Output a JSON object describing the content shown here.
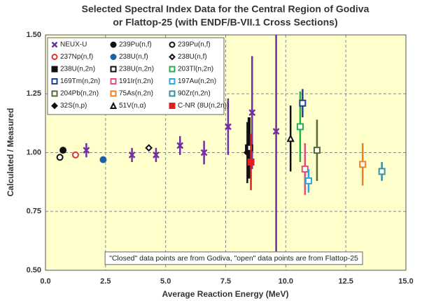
{
  "chart_data": {
    "type": "scatter",
    "title": [
      "Selected Spectral Index Data for the Central Region of Godiva",
      "or Flattop-25 (with ENDF/B-VII.1 Cross Sections)"
    ],
    "x_label": "Average Reaction Energy (MeV)",
    "y_label": "Calculated / Measured",
    "annotation": "\"Closed\" data points are from Godiva, \"open\" data points are from Flattop-25",
    "xlim": [
      0,
      15
    ],
    "ylim": [
      0.5,
      1.5
    ],
    "xticks": [
      {
        "value": 0,
        "label": "0.0"
      },
      {
        "value": 2.5,
        "label": "2.5"
      },
      {
        "value": 5,
        "label": "5.0"
      },
      {
        "value": 7.5,
        "label": "7.5"
      },
      {
        "value": 10,
        "label": "10.0"
      },
      {
        "value": 12.5,
        "label": "12.5"
      },
      {
        "value": 15,
        "label": "15.0"
      }
    ],
    "yticks": [
      {
        "value": 0.5,
        "label": "0.50"
      },
      {
        "value": 0.75,
        "label": "0.75"
      },
      {
        "value": 1,
        "label": "1.00"
      },
      {
        "value": 1.25,
        "label": "1.25"
      },
      {
        "value": 1.5,
        "label": "1.50"
      }
    ],
    "grid": true,
    "background": "#ffffcc",
    "series": [
      {
        "name": "NEUX-U",
        "color": "#7030a0",
        "marker": "x",
        "filled": true,
        "x": [
          1.7,
          3.6,
          4.6,
          5.6,
          6.6,
          7.6,
          8.6,
          9.6
        ],
        "values": [
          1.01,
          0.99,
          0.99,
          1.03,
          1.0,
          1.11,
          1.17,
          1.09
        ],
        "errors": [
          0.03,
          0.03,
          0.03,
          0.04,
          0.05,
          0.12,
          0.24,
          0.51
        ]
      },
      {
        "name": "239Pu(n,f)",
        "color": "#111111",
        "marker": "circle",
        "filled": true,
        "x": [
          0.73
        ],
        "values": [
          1.01
        ],
        "errors": [
          0.01
        ]
      },
      {
        "name": "239Pu(n,f)",
        "color": "#111111",
        "marker": "circle",
        "filled": false,
        "x": [
          0.6
        ],
        "values": [
          0.98
        ],
        "errors": [
          0.01
        ]
      },
      {
        "name": "237Np(n,f)",
        "color": "#e03030",
        "marker": "circle",
        "filled": false,
        "x": [
          1.25
        ],
        "values": [
          0.99
        ],
        "errors": [
          0.01
        ]
      },
      {
        "name": "238U(n,f)",
        "color": "#1f5fa8",
        "marker": "circle",
        "filled": true,
        "x": [
          2.4
        ],
        "values": [
          0.97
        ],
        "errors": [
          0.01
        ]
      },
      {
        "name": "238U(n,f)",
        "color": "#111111",
        "marker": "diamond",
        "filled": false,
        "x": [
          4.3
        ],
        "values": [
          1.02
        ],
        "errors": [
          0.01
        ]
      },
      {
        "name": "238U(n,2n)",
        "color": "#111111",
        "marker": "square",
        "filled": true,
        "x": [
          8.45
        ],
        "values": [
          1.02
        ],
        "errors": [
          0.13
        ]
      },
      {
        "name": "238U(n,2n)",
        "color": "#111111",
        "marker": "square",
        "filled": false,
        "x": [
          8.5
        ],
        "values": [
          1.02
        ],
        "errors": [
          0.13
        ]
      },
      {
        "name": "203Tl(n,2n)",
        "color": "#22b04b",
        "marker": "square",
        "filled": false,
        "x": [
          10.6
        ],
        "values": [
          1.11
        ],
        "errors": [
          0.15
        ]
      },
      {
        "name": "169Tm(n,2n)",
        "color": "#1f3f8f",
        "marker": "square",
        "filled": false,
        "x": [
          10.7
        ],
        "values": [
          1.21
        ],
        "errors": [
          0.06
        ]
      },
      {
        "name": "191Ir(n,2n)",
        "color": "#e0507a",
        "marker": "square",
        "filled": false,
        "x": [
          10.8
        ],
        "values": [
          0.93
        ],
        "errors": [
          0.11
        ]
      },
      {
        "name": "197Au(n,2n)",
        "color": "#2aa8e0",
        "marker": "square",
        "filled": false,
        "x": [
          10.95
        ],
        "values": [
          0.88
        ],
        "errors": [
          0.05
        ]
      },
      {
        "name": "204Pb(n,2n)",
        "color": "#556b2f",
        "marker": "square",
        "filled": false,
        "x": [
          11.3
        ],
        "values": [
          1.01
        ],
        "errors": [
          0.13
        ]
      },
      {
        "name": "75As(n,2n)",
        "color": "#f08020",
        "marker": "square",
        "filled": false,
        "x": [
          13.2
        ],
        "values": [
          0.95
        ],
        "errors": [
          0.09
        ]
      },
      {
        "name": "90Zr(n,2n)",
        "color": "#3a8fa0",
        "marker": "square",
        "filled": false,
        "x": [
          14.0
        ],
        "values": [
          0.92
        ],
        "errors": [
          0.04
        ]
      },
      {
        "name": "32S(n,p)",
        "color": "#111111",
        "marker": "diamond",
        "filled": true,
        "x": [
          8.4
        ],
        "values": [
          1.0
        ],
        "errors": [
          0.13
        ]
      },
      {
        "name": "51V(n,α)",
        "color": "#111111",
        "marker": "triangle",
        "filled": false,
        "x": [
          10.2
        ],
        "values": [
          1.06
        ],
        "errors": [
          0.14
        ]
      },
      {
        "name": "C-NR (8U(n,2n))",
        "color": "#e02020",
        "marker": "square",
        "filled": true,
        "x": [
          8.55
        ],
        "values": [
          0.96
        ],
        "errors": [
          0.12
        ]
      }
    ]
  }
}
